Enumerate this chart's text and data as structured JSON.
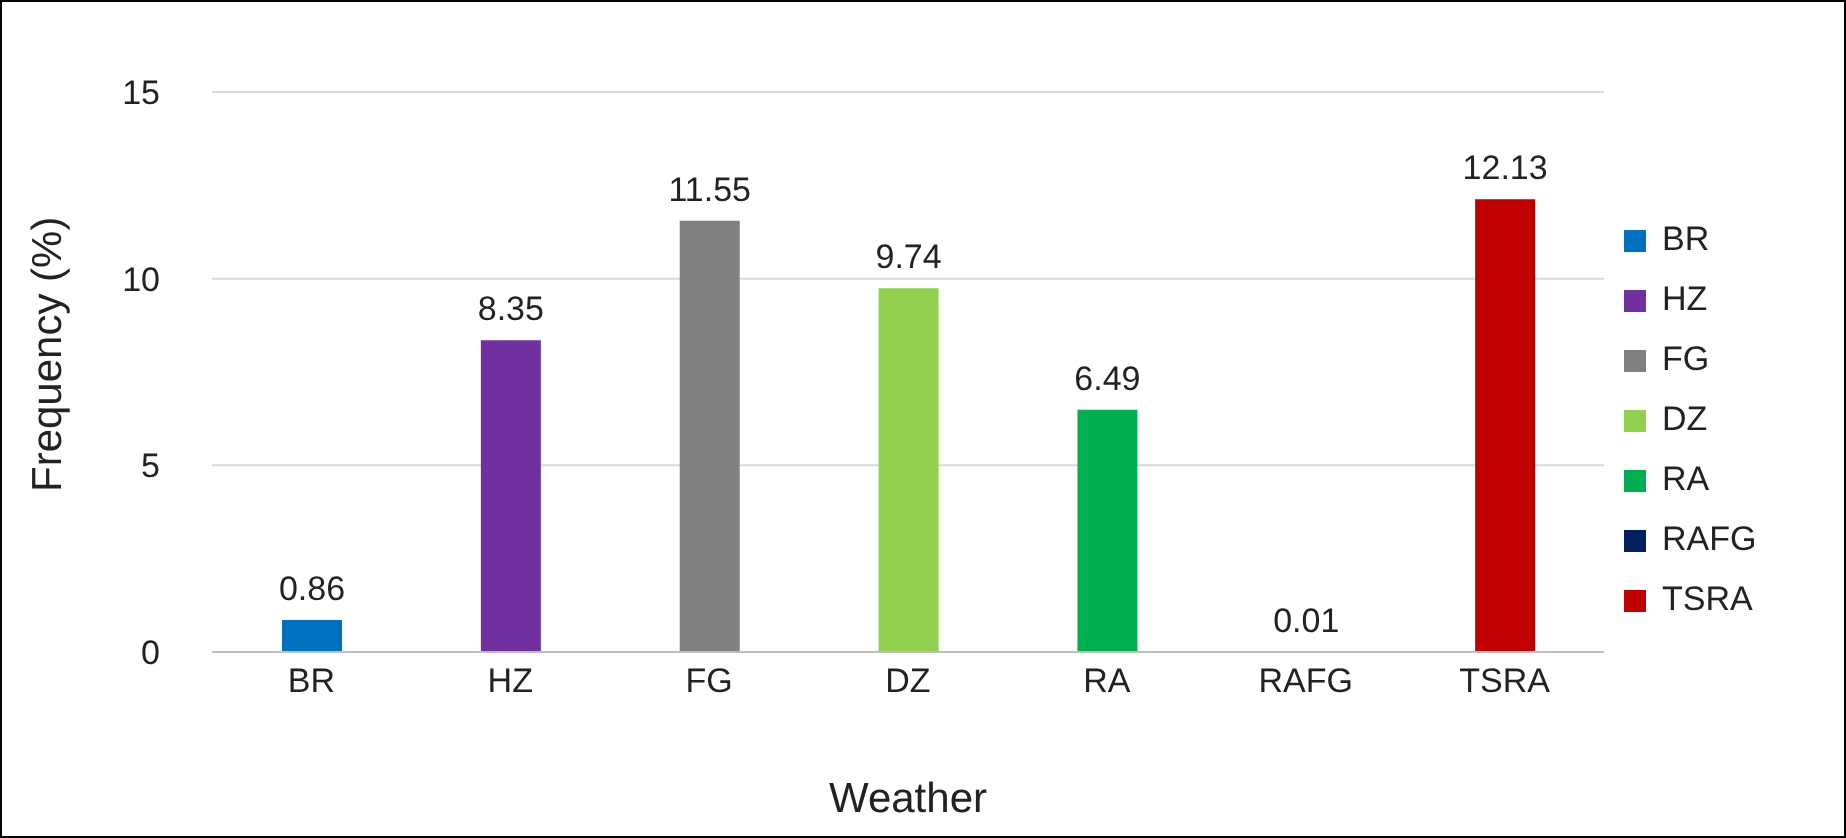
{
  "chart_data": {
    "type": "bar",
    "xlabel": "Weather",
    "ylabel": "Frequency (%)",
    "categories": [
      "BR",
      "HZ",
      "FG",
      "DZ",
      "RA",
      "RAFG",
      "TSRA"
    ],
    "series": [
      {
        "name": "BR",
        "color": "#0070c0",
        "values": [
          0.86,
          null,
          null,
          null,
          null,
          null,
          null
        ]
      },
      {
        "name": "HZ",
        "color": "#7030a0",
        "values": [
          null,
          8.35,
          null,
          null,
          null,
          null,
          null
        ]
      },
      {
        "name": "FG",
        "color": "#808080",
        "values": [
          null,
          null,
          11.55,
          null,
          null,
          null,
          null
        ]
      },
      {
        "name": "DZ",
        "color": "#92d050",
        "values": [
          null,
          null,
          null,
          9.74,
          null,
          null,
          null
        ]
      },
      {
        "name": "RA",
        "color": "#00b050",
        "values": [
          null,
          null,
          null,
          null,
          6.49,
          null,
          null
        ]
      },
      {
        "name": "RAFG",
        "color": "#002060",
        "values": [
          null,
          null,
          null,
          null,
          null,
          0.01,
          null
        ]
      },
      {
        "name": "TSRA",
        "color": "#c00000",
        "values": [
          null,
          null,
          null,
          null,
          null,
          null,
          12.13
        ]
      }
    ],
    "ylim": [
      0,
      15
    ],
    "yticks": [
      0,
      5,
      10,
      15
    ],
    "grid": "y",
    "legend": "right",
    "data_labels": true
  }
}
